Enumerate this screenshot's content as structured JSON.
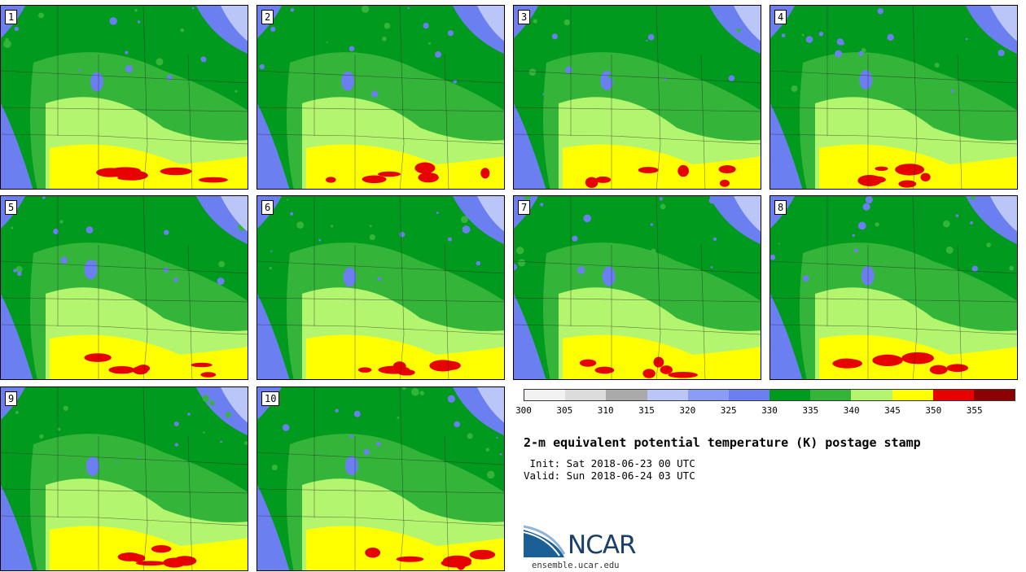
{
  "panels": [
    {
      "label": "1"
    },
    {
      "label": "2"
    },
    {
      "label": "3"
    },
    {
      "label": "4"
    },
    {
      "label": "5"
    },
    {
      "label": "6"
    },
    {
      "label": "7"
    },
    {
      "label": "8"
    },
    {
      "label": "9"
    },
    {
      "label": "10"
    }
  ],
  "colorbar": {
    "ticks": [
      "300",
      "305",
      "310",
      "315",
      "320",
      "325",
      "330",
      "335",
      "340",
      "345",
      "350",
      "355"
    ],
    "colors": [
      "#f2f2f2",
      "#dcdcdc",
      "#aaaaaa",
      "#b9c6f7",
      "#8a9cf5",
      "#6b7ff0",
      "#009a1e",
      "#35b43a",
      "#b3f56e",
      "#ffff00",
      "#e60000",
      "#8b0000"
    ]
  },
  "title": "2-m equivalent potential temperature (K) postage stamp",
  "init": " Init: Sat 2018-06-23 00 UTC",
  "valid": "Valid: Sun 2018-06-24 03 UTC",
  "logo": {
    "name": "NCAR",
    "url": "ensemble.ucar.edu"
  }
}
